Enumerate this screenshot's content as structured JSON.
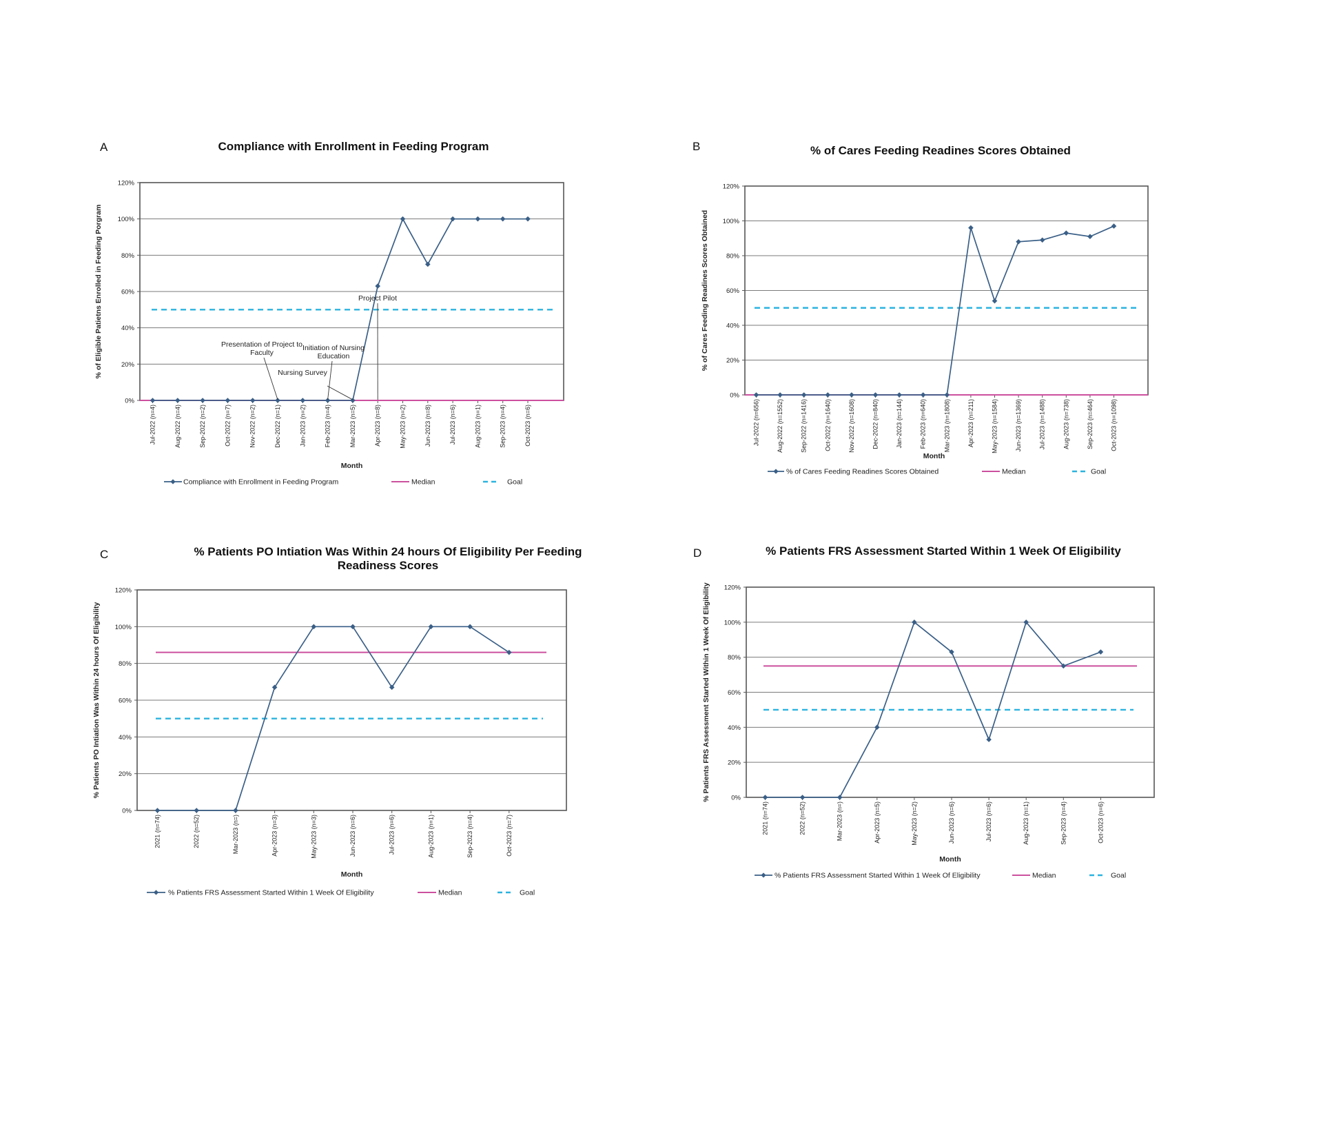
{
  "colors": {
    "series": "#3a5f87",
    "median": "#cc4f9e",
    "goal": "#2bb3df",
    "grid": "#7a7a7a",
    "frame": "#555555"
  },
  "chart_data": [
    {
      "panel": "A",
      "type": "line",
      "title": [
        "Compliance  with Enrollment in Feeding Program"
      ],
      "xlabel": "Month",
      "ylabel": "% of Eligible Patietns Enrolled in Feeding Porgram",
      "ylim": [
        0,
        120
      ],
      "yticks": [
        "0%",
        "20%",
        "40%",
        "60%",
        "80%",
        "100%",
        "120%"
      ],
      "grid": true,
      "legend_position": "bottom",
      "categories": [
        "Jul-2022 (n=4)",
        "Aug-2022 (n=4)",
        "Sep-2022 (n=2)",
        "Oct-2022 (n=7)",
        "Nov-2022 (n=2)",
        "Dec-2022 (n=1)",
        "Jan-2023 (n=2)",
        "Feb-2023 (n=4)",
        "Mar-2023 (n=5)",
        "Apr-2023 (n=8)",
        "May-2023 (n=2)",
        "Jun-2023 (n=8)",
        "Jul-2023 (n=6)",
        "Aug-2023 (n=1)",
        "Sep-2023 (n=4)",
        "Oct-2023 (n=6)"
      ],
      "series": [
        {
          "name": "Compliance  with Enrollment in Feeding Program",
          "role": "data",
          "values": [
            0,
            0,
            0,
            0,
            0,
            0,
            0,
            0,
            0,
            63,
            100,
            75,
            100,
            100,
            100,
            100
          ]
        },
        {
          "name": "Median",
          "role": "median",
          "value": 0
        },
        {
          "name": "Goal",
          "role": "goal",
          "value": 50
        }
      ],
      "annotations": [
        {
          "lines": [
            "Presentation of Project to",
            "Faculty"
          ],
          "x": 5,
          "y": 0
        },
        {
          "lines": [
            "Initiation of Nursing",
            "Education"
          ],
          "x": 7,
          "y": 0
        },
        {
          "lines": [
            "Nursing Survey"
          ],
          "x": 8,
          "y": 0
        },
        {
          "lines": [
            "Project Pilot"
          ],
          "x": 9,
          "y": 0
        }
      ]
    },
    {
      "panel": "B",
      "type": "line",
      "title": [
        "% of Cares Feeding Readines Scores Obtained"
      ],
      "xlabel": "Month",
      "ylabel": "% of Cares Feeding Readines Scores Obtained",
      "ylim": [
        0,
        120
      ],
      "yticks": [
        "0%",
        "20%",
        "40%",
        "60%",
        "80%",
        "100%",
        "120%"
      ],
      "grid": true,
      "legend_position": "bottom",
      "categories": [
        "Jul-2022 (n=656)",
        "Aug-2022 (n=1552)",
        "Sep-2022 (n=1416)",
        "Oct-2022 (n=1640)",
        "Nov-2022 (n=1608)",
        "Dec-2022 (n=840)",
        "Jan-2023 (n=144)",
        "Feb-2023 (n=640)",
        "Mar-2023 (n=1808)",
        "Apr-2023 (n=211)",
        "May-2023 (n=1584)",
        "Jun-2023 (n=1369)",
        "Jul-2023 (n=1488)",
        "Aug-2023 (n=738)",
        "Sep-2023 (n=464)",
        "Oct-2023 (n=1098)"
      ],
      "series": [
        {
          "name": "% of Cares Feeding Readines Scores Obtained",
          "role": "data",
          "values": [
            0,
            0,
            0,
            0,
            0,
            0,
            0,
            0,
            0,
            96,
            54,
            88,
            89,
            93,
            91,
            97
          ]
        },
        {
          "name": "Median",
          "role": "median",
          "value": 0
        },
        {
          "name": "Goal",
          "role": "goal",
          "value": 50
        }
      ],
      "annotations": []
    },
    {
      "panel": "C",
      "type": "line",
      "title": [
        "% Patients PO Intiation Was Within 24 hours Of Eligibility Per Feeding",
        "Readiness Scores"
      ],
      "xlabel": "Month",
      "ylabel": "% Patients PO Intiation Was Within 24 hours Of Eligibility",
      "ylim": [
        0,
        120
      ],
      "yticks": [
        "0%",
        "20%",
        "40%",
        "60%",
        "80%",
        "100%",
        "120%"
      ],
      "grid": true,
      "legend_position": "bottom",
      "categories": [
        "2021 (n=74)",
        "2022 (n=52)",
        "Mar-2023 (n=)",
        "Apr-2023 (n=3)",
        "May-2023 (n=3)",
        "Jun-2023 (n=6)",
        "Jul-2023 (n=6)",
        "Aug-2023 (n=1)",
        "Sep-2023 (n=4)",
        "Oct-2023 (n=7)"
      ],
      "series": [
        {
          "name": "% Patients FRS Assessment Started Within 1 Week Of Eligibility",
          "role": "data",
          "values": [
            0,
            0,
            0,
            67,
            100,
            100,
            67,
            100,
            100,
            86
          ]
        },
        {
          "name": "Median",
          "role": "median",
          "value": 86
        },
        {
          "name": "Goal",
          "role": "goal",
          "value": 50
        }
      ],
      "annotations": []
    },
    {
      "panel": "D",
      "type": "line",
      "title": [
        "% Patients FRS Assessment Started Within 1 Week Of Eligibility"
      ],
      "xlabel": "Month",
      "ylabel": "% Patients FRS Assessment Started Within 1 Week Of Eligibility",
      "ylim": [
        0,
        120
      ],
      "yticks": [
        "0%",
        "20%",
        "40%",
        "60%",
        "80%",
        "100%",
        "120%"
      ],
      "grid": true,
      "legend_position": "bottom",
      "categories": [
        "2021 (n=74)",
        "2022 (n=52)",
        "Mar-2023 (n=)",
        "Apr-2023 (n=5)",
        "May-2023 (n=2)",
        "Jun-2023 (n=6)",
        "Jul-2023 (n=6)",
        "Aug-2023 (n=1)",
        "Sep-2023 (n=4)",
        "Oct-2023 (n=6)"
      ],
      "series": [
        {
          "name": "% Patients FRS Assessment Started Within 1 Week Of Eligibility",
          "role": "data",
          "values": [
            0,
            0,
            0,
            40,
            100,
            83,
            33,
            100,
            75,
            83
          ]
        },
        {
          "name": "Median",
          "role": "median",
          "value": 75
        },
        {
          "name": "Goal",
          "role": "goal",
          "value": 50
        }
      ],
      "annotations": []
    }
  ]
}
